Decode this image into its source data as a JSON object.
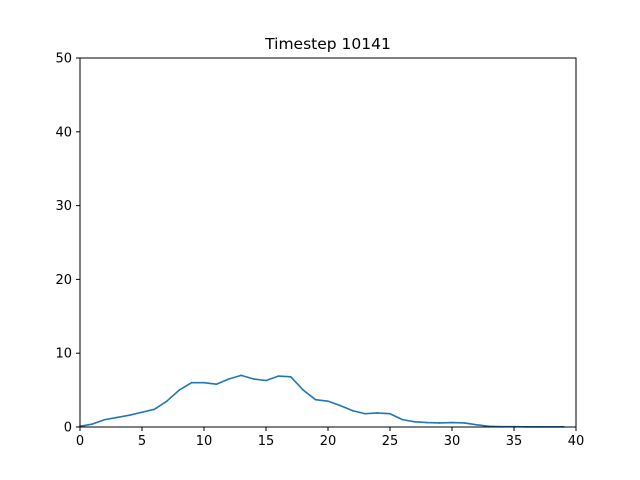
{
  "chart_data": {
    "type": "line",
    "title": "Timestep 10141",
    "xlabel": "",
    "ylabel": "",
    "xlim": [
      0,
      40
    ],
    "ylim": [
      0,
      50
    ],
    "xticks": [
      0,
      5,
      10,
      15,
      20,
      25,
      30,
      35,
      40
    ],
    "yticks": [
      0,
      10,
      20,
      30,
      40,
      50
    ],
    "grid": false,
    "colors": {
      "line": "#1f77b4",
      "axes": "#000000",
      "background": "#ffffff"
    },
    "series": [
      {
        "x": [
          0,
          1,
          2,
          3,
          4,
          5,
          6,
          7,
          8,
          9,
          10,
          11,
          12,
          13,
          14,
          15,
          16,
          17,
          18,
          19,
          20,
          21,
          22,
          23,
          24,
          25,
          26,
          27,
          28,
          29,
          30,
          31,
          32,
          33,
          34,
          35,
          36,
          37,
          38,
          39
        ],
        "values": [
          0.1,
          0.4,
          1.0,
          1.3,
          1.6,
          2.0,
          2.4,
          3.5,
          5.0,
          6.0,
          6.0,
          5.8,
          6.5,
          7.0,
          6.5,
          6.3,
          6.9,
          6.8,
          5.0,
          3.7,
          3.5,
          2.9,
          2.2,
          1.8,
          1.9,
          1.8,
          1.0,
          0.7,
          0.6,
          0.55,
          0.6,
          0.55,
          0.3,
          0.1,
          0.05,
          0.05,
          0.02,
          0.02,
          0.02,
          0.02
        ]
      }
    ]
  }
}
